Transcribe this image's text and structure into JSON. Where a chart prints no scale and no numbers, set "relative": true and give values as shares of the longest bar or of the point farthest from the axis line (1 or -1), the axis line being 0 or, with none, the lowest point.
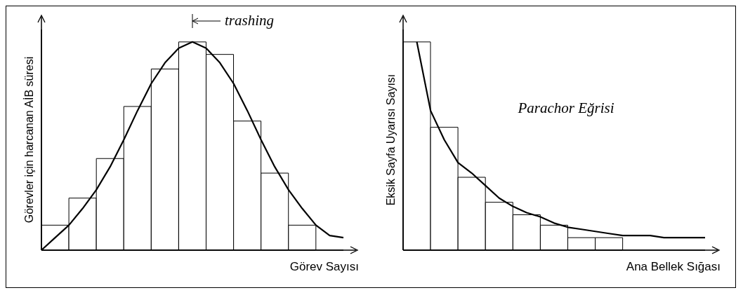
{
  "chart_data": [
    {
      "type": "bar",
      "relative": true,
      "categories": [
        null,
        null,
        null,
        null,
        null,
        null,
        null,
        null,
        null,
        null
      ],
      "series": [
        {
          "color": "#ffffff",
          "values": [
            0.12,
            0.25,
            0.44,
            0.69,
            0.87,
            1,
            0.94,
            0.62,
            0.37,
            0.12
          ]
        }
      ],
      "xlabel": "Görev Sayısı",
      "ylabel": "Görevler için harcanan AİB süresi",
      "annotations": [
        "trashing"
      ],
      "grid": false,
      "legend": false
    },
    {
      "type": "line",
      "relative": true,
      "categories": [
        null,
        null,
        null,
        null,
        null,
        null,
        null,
        null,
        null,
        null,
        null,
        null,
        null,
        null,
        null,
        null,
        null,
        null,
        null,
        null,
        null,
        null,
        null
      ],
      "series": [
        {
          "color": "#000000",
          "values": [
            0,
            0.06,
            0.12,
            0.2,
            0.29,
            0.4,
            0.53,
            0.67,
            0.8,
            0.9,
            0.97,
            1,
            0.97,
            0.9,
            0.8,
            0.67,
            0.53,
            0.4,
            0.29,
            0.2,
            0.12,
            0.07,
            0.06
          ]
        }
      ],
      "grid": false,
      "legend": false
    },
    {
      "type": "bar",
      "relative": true,
      "categories": [
        null,
        null,
        null,
        null,
        null,
        null,
        null,
        null
      ],
      "series": [
        {
          "color": "#ffffff",
          "values": [
            1,
            0.59,
            0.35,
            0.23,
            0.17,
            0.12,
            0.06,
            0.06
          ]
        }
      ],
      "xlabel": "Ana Bellek Sığası",
      "ylabel": "Eksik Sayfa Uyarısı Sayısı",
      "annotations": [
        "Parachor Eğrisi"
      ],
      "grid": false,
      "legend": false
    },
    {
      "type": "line",
      "relative": true,
      "categories": [
        null,
        null,
        null,
        null,
        null,
        null,
        null,
        null,
        null,
        null,
        null,
        null,
        null,
        null,
        null,
        null,
        null,
        null,
        null,
        null,
        null,
        null
      ],
      "series": [
        {
          "color": "#000000",
          "values": [
            1,
            0.67,
            0.53,
            0.42,
            0.37,
            0.31,
            0.25,
            0.21,
            0.18,
            0.16,
            0.13,
            0.11,
            0.1,
            0.09,
            0.08,
            0.07,
            0.07,
            0.07,
            0.06,
            0.06,
            0.06,
            0.06
          ]
        }
      ],
      "grid": false,
      "legend": false
    }
  ]
}
